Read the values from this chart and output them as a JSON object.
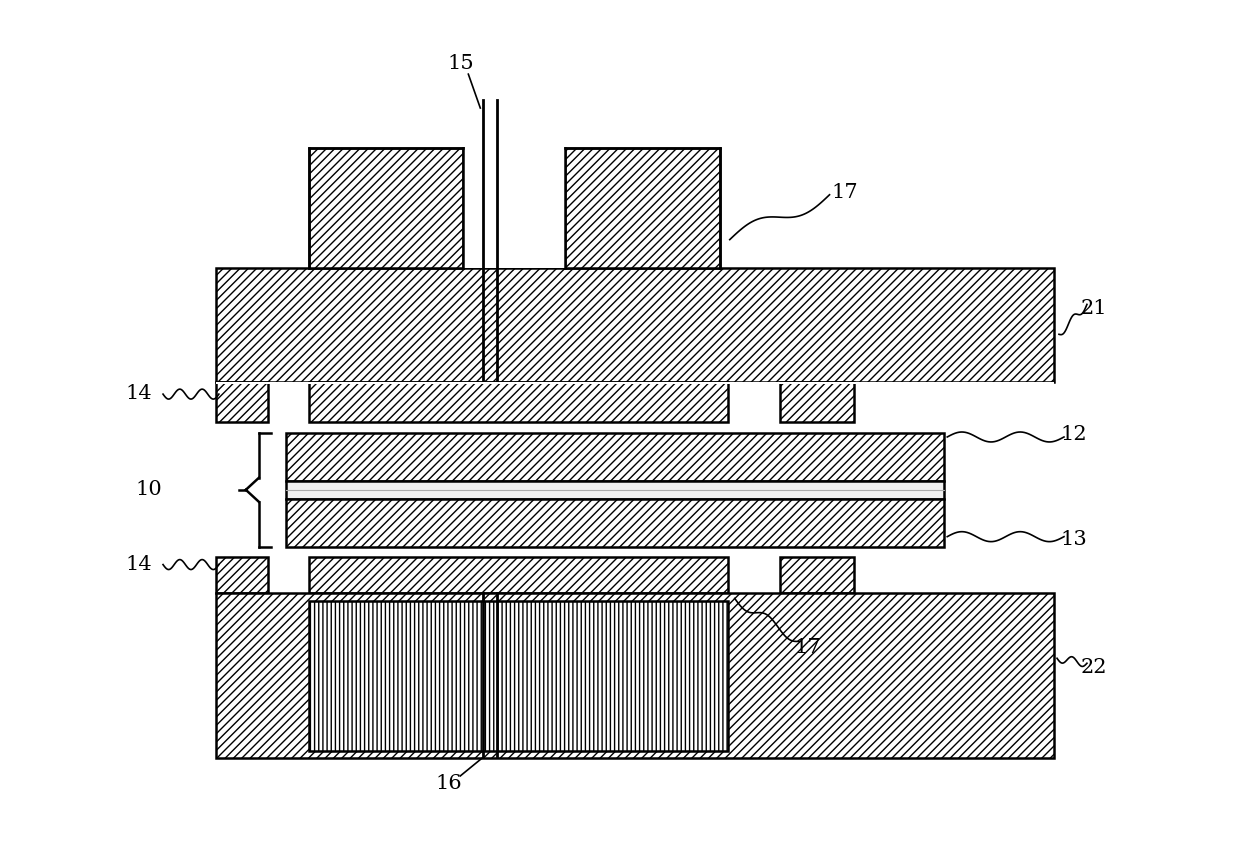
{
  "bg_color": "#ffffff",
  "fig_width": 12.35,
  "fig_height": 8.62,
  "lw_main": 1.8,
  "lw_thin": 1.2,
  "label_fontsize": 15
}
